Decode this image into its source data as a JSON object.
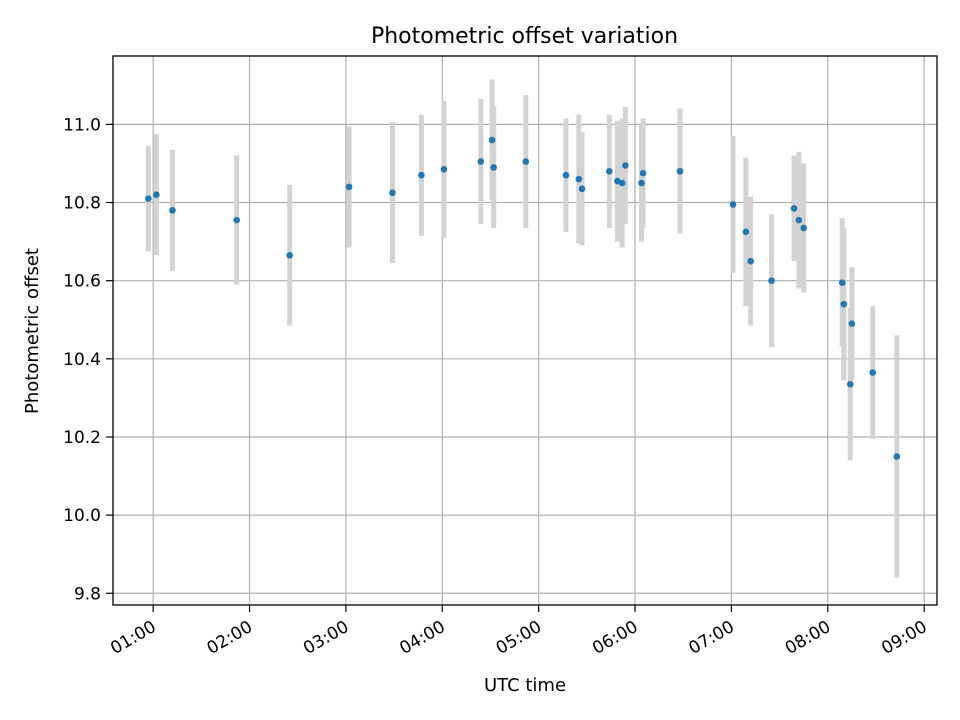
{
  "chart_data": {
    "type": "scatter",
    "title": "Photometric offset variation",
    "xlabel": "UTC time",
    "ylabel": "Photometric offset",
    "xlim": [
      "00:35",
      "09:08"
    ],
    "ylim": [
      9.77,
      11.175
    ],
    "grid": true,
    "x_ticks": [
      "01:00",
      "02:00",
      "03:00",
      "04:00",
      "05:00",
      "06:00",
      "07:00",
      "08:00",
      "09:00"
    ],
    "y_ticks": [
      9.8,
      10.0,
      10.2,
      10.4,
      10.6,
      10.8,
      11.0
    ],
    "y_tick_labels": [
      "9.8",
      "10.0",
      "10.2",
      "10.4",
      "10.6",
      "10.8",
      "11.0"
    ],
    "colors": {
      "points": "#1f77b4",
      "errorbars": "#d3d3d3",
      "grid": "#b0b0b0"
    },
    "series": [
      {
        "x": [
          "00:57",
          "01:02",
          "01:12",
          "01:52",
          "02:25",
          "03:02",
          "03:29",
          "03:47",
          "04:01",
          "04:24",
          "04:31",
          "04:32",
          "04:52",
          "05:17",
          "05:25",
          "05:27",
          "05:44",
          "05:49",
          "05:52",
          "05:54",
          "06:04",
          "06:05",
          "06:28",
          "07:01",
          "07:09",
          "07:12",
          "07:25",
          "07:39",
          "07:42",
          "07:45",
          "08:09",
          "08:10",
          "08:14",
          "08:15",
          "08:28",
          "08:43"
        ],
        "y": [
          10.81,
          10.82,
          10.78,
          10.755,
          10.665,
          10.84,
          10.825,
          10.87,
          10.885,
          10.905,
          10.96,
          10.89,
          10.905,
          10.87,
          10.86,
          10.835,
          10.88,
          10.855,
          10.85,
          10.895,
          10.85,
          10.875,
          10.88,
          10.795,
          10.725,
          10.65,
          10.6,
          10.785,
          10.755,
          10.735,
          10.595,
          10.54,
          10.335,
          10.49,
          10.365,
          10.15
        ],
        "yerr": [
          0.135,
          0.155,
          0.155,
          0.165,
          0.18,
          0.155,
          0.18,
          0.155,
          0.175,
          0.16,
          0.155,
          0.155,
          0.17,
          0.145,
          0.165,
          0.145,
          0.145,
          0.155,
          0.165,
          0.15,
          0.15,
          0.14,
          0.16,
          0.175,
          0.19,
          0.165,
          0.17,
          0.135,
          0.175,
          0.165,
          0.165,
          0.195,
          0.195,
          0.145,
          0.17,
          0.31
        ]
      }
    ]
  }
}
